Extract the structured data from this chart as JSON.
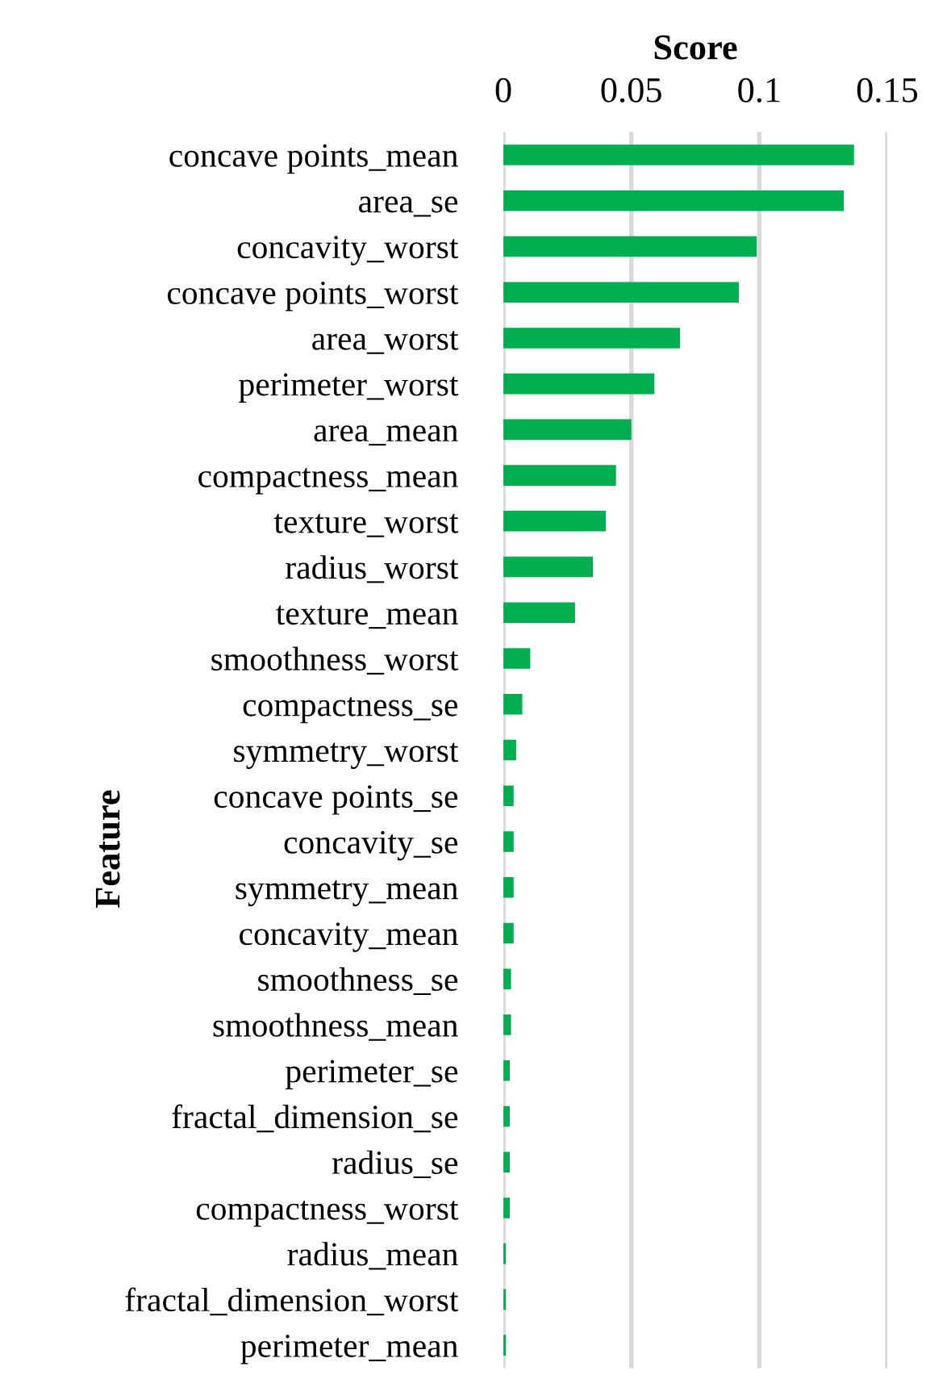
{
  "chart_data": {
    "type": "bar",
    "orientation": "horizontal",
    "xlabel": "Score",
    "ylabel": "Feature",
    "categories": [
      "concave points_mean",
      "area_se",
      "concavity_worst",
      "concave points_worst",
      "area_worst",
      "perimeter_worst",
      "area_mean",
      "compactness_mean",
      "texture_worst",
      "radius_worst",
      "texture_mean",
      "smoothness_worst",
      "compactness_se",
      "symmetry_worst",
      "concave points_se",
      "concavity_se",
      "symmetry_mean",
      "concavity_mean",
      "smoothness_se",
      "smoothness_mean",
      "perimeter_se",
      "fractal_dimension_se",
      "radius_se",
      "compactness_worst",
      "radius_mean",
      "fractal_dimension_worst",
      "perimeter_mean"
    ],
    "values": [
      0.137,
      0.133,
      0.099,
      0.092,
      0.069,
      0.059,
      0.05,
      0.044,
      0.04,
      0.035,
      0.028,
      0.0105,
      0.0074,
      0.005,
      0.004,
      0.004,
      0.004,
      0.004,
      0.003,
      0.003,
      0.0025,
      0.0025,
      0.0025,
      0.0025,
      0.001,
      0.001,
      0.001
    ],
    "color": "#00b050",
    "xlim": [
      0,
      0.15
    ],
    "xticks": [
      0,
      {
        "value": 0.05,
        "label": "0.05"
      },
      {
        "value": 0.1,
        "label": "0.1"
      },
      {
        "value": 0.15,
        "label": "0.15"
      }
    ],
    "grid": "x",
    "legend": false
  }
}
